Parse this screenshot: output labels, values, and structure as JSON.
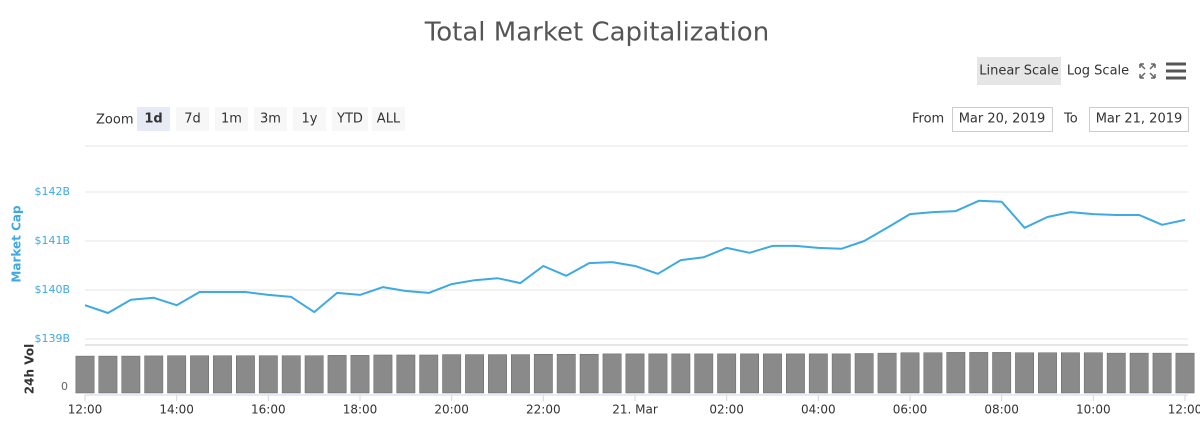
{
  "ui": {
    "scale_buttons": [
      "Linear Scale",
      "Log Scale"
    ],
    "zoom_label": "Zoom",
    "zoom_buttons": [
      "1d",
      "7d",
      "1m",
      "3m",
      "1y",
      "YTD",
      "ALL"
    ],
    "from_label": "From",
    "from_value": "Mar 20, 2019",
    "to_label": "To",
    "to_value": "Mar 21, 2019"
  },
  "chart_data": {
    "type": "line",
    "title": "Total Market Capitalization",
    "x": [
      "2019-03-20T12:00",
      "2019-03-20T12:30",
      "2019-03-20T13:00",
      "2019-03-20T13:30",
      "2019-03-20T14:00",
      "2019-03-20T14:30",
      "2019-03-20T15:00",
      "2019-03-20T15:30",
      "2019-03-20T16:00",
      "2019-03-20T16:30",
      "2019-03-20T17:00",
      "2019-03-20T17:30",
      "2019-03-20T18:00",
      "2019-03-20T18:30",
      "2019-03-20T19:00",
      "2019-03-20T19:30",
      "2019-03-20T20:00",
      "2019-03-20T20:30",
      "2019-03-20T21:00",
      "2019-03-20T21:30",
      "2019-03-20T22:00",
      "2019-03-20T22:30",
      "2019-03-20T23:00",
      "2019-03-20T23:30",
      "2019-03-21T00:00",
      "2019-03-21T00:30",
      "2019-03-21T01:00",
      "2019-03-21T01:30",
      "2019-03-21T02:00",
      "2019-03-21T02:30",
      "2019-03-21T03:00",
      "2019-03-21T03:30",
      "2019-03-21T04:00",
      "2019-03-21T04:30",
      "2019-03-21T05:00",
      "2019-03-21T05:30",
      "2019-03-21T06:00",
      "2019-03-21T06:30",
      "2019-03-21T07:00",
      "2019-03-21T07:30",
      "2019-03-21T08:00",
      "2019-03-21T08:30",
      "2019-03-21T09:00",
      "2019-03-21T09:30",
      "2019-03-21T10:00",
      "2019-03-21T10:30",
      "2019-03-21T11:00",
      "2019-03-21T11:30",
      "2019-03-21T12:00"
    ],
    "series": [
      {
        "name": "Market Cap",
        "color": "#3fa9e3",
        "values": [
          139690000000.0,
          139530000000.0,
          139800000000.0,
          139840000000.0,
          139690000000.0,
          139960000000.0,
          139960000000.0,
          139960000000.0,
          139900000000.0,
          139860000000.0,
          139550000000.0,
          139940000000.0,
          139900000000.0,
          140060000000.0,
          139980000000.0,
          139940000000.0,
          140120000000.0,
          140200000000.0,
          140240000000.0,
          140140000000.0,
          140490000000.0,
          140290000000.0,
          140550000000.0,
          140570000000.0,
          140490000000.0,
          140330000000.0,
          140610000000.0,
          140670000000.0,
          140860000000.0,
          140760000000.0,
          140900000000.0,
          140900000000.0,
          140860000000.0,
          140840000000.0,
          141000000000.0,
          141270000000.0,
          141550000000.0,
          141590000000.0,
          141610000000.0,
          141820000000.0,
          141800000000.0,
          141270000000.0,
          141490000000.0,
          141590000000.0,
          141550000000.0,
          141530000000.0,
          141530000000.0,
          141330000000.0,
          141430000000.0
        ]
      },
      {
        "name": "24h Vol",
        "axis": "y2",
        "color": "#8a8a8a",
        "values": [
          10000000000.0,
          10000000000.0,
          10000000000.0,
          10050000000.0,
          10100000000.0,
          10100000000.0,
          10100000000.0,
          10100000000.0,
          10100000000.0,
          10100000000.0,
          10100000000.0,
          10200000000.0,
          10200000000.0,
          10300000000.0,
          10300000000.0,
          10300000000.0,
          10400000000.0,
          10400000000.0,
          10400000000.0,
          10400000000.0,
          10500000000.0,
          10500000000.0,
          10500000000.0,
          10600000000.0,
          10600000000.0,
          10600000000.0,
          10600000000.0,
          10600000000.0,
          10600000000.0,
          10600000000.0,
          10600000000.0,
          10600000000.0,
          10600000000.0,
          10600000000.0,
          10700000000.0,
          10800000000.0,
          10900000000.0,
          10900000000.0,
          11000000000.0,
          11000000000.0,
          11000000000.0,
          10900000000.0,
          10900000000.0,
          10900000000.0,
          10900000000.0,
          10800000000.0,
          10800000000.0,
          10800000000.0,
          10800000000.0
        ]
      }
    ],
    "xlim": [
      "2019-03-20T12:00",
      "2019-03-21T12:00"
    ],
    "xticks": [
      {
        "value": "2019-03-20T12:00",
        "label": "12:00"
      },
      {
        "value": "2019-03-20T14:00",
        "label": "14:00"
      },
      {
        "value": "2019-03-20T16:00",
        "label": "16:00"
      },
      {
        "value": "2019-03-20T18:00",
        "label": "18:00"
      },
      {
        "value": "2019-03-20T20:00",
        "label": "20:00"
      },
      {
        "value": "2019-03-20T22:00",
        "label": "22:00"
      },
      {
        "value": "2019-03-21T00:00",
        "label": "21. Mar"
      },
      {
        "value": "2019-03-21T02:00",
        "label": "02:00"
      },
      {
        "value": "2019-03-21T04:00",
        "label": "04:00"
      },
      {
        "value": "2019-03-21T06:00",
        "label": "06:00"
      },
      {
        "value": "2019-03-21T08:00",
        "label": "08:00"
      },
      {
        "value": "2019-03-21T10:00",
        "label": "10:00"
      },
      {
        "value": "2019-03-21T12:00",
        "label": "12:00"
      }
    ],
    "ylim": [
      139000000000.0,
      143000000000.0
    ],
    "yticks": [
      {
        "value": 139000000000.0,
        "label": "$139B"
      },
      {
        "value": 140000000000.0,
        "label": "$140B"
      },
      {
        "value": 141000000000.0,
        "label": "$141B"
      },
      {
        "value": 142000000000.0,
        "label": "$142B"
      }
    ],
    "y2lim": [
      0,
      13000000000.0
    ],
    "y2ticks": [
      0
    ],
    "grid": true
  }
}
